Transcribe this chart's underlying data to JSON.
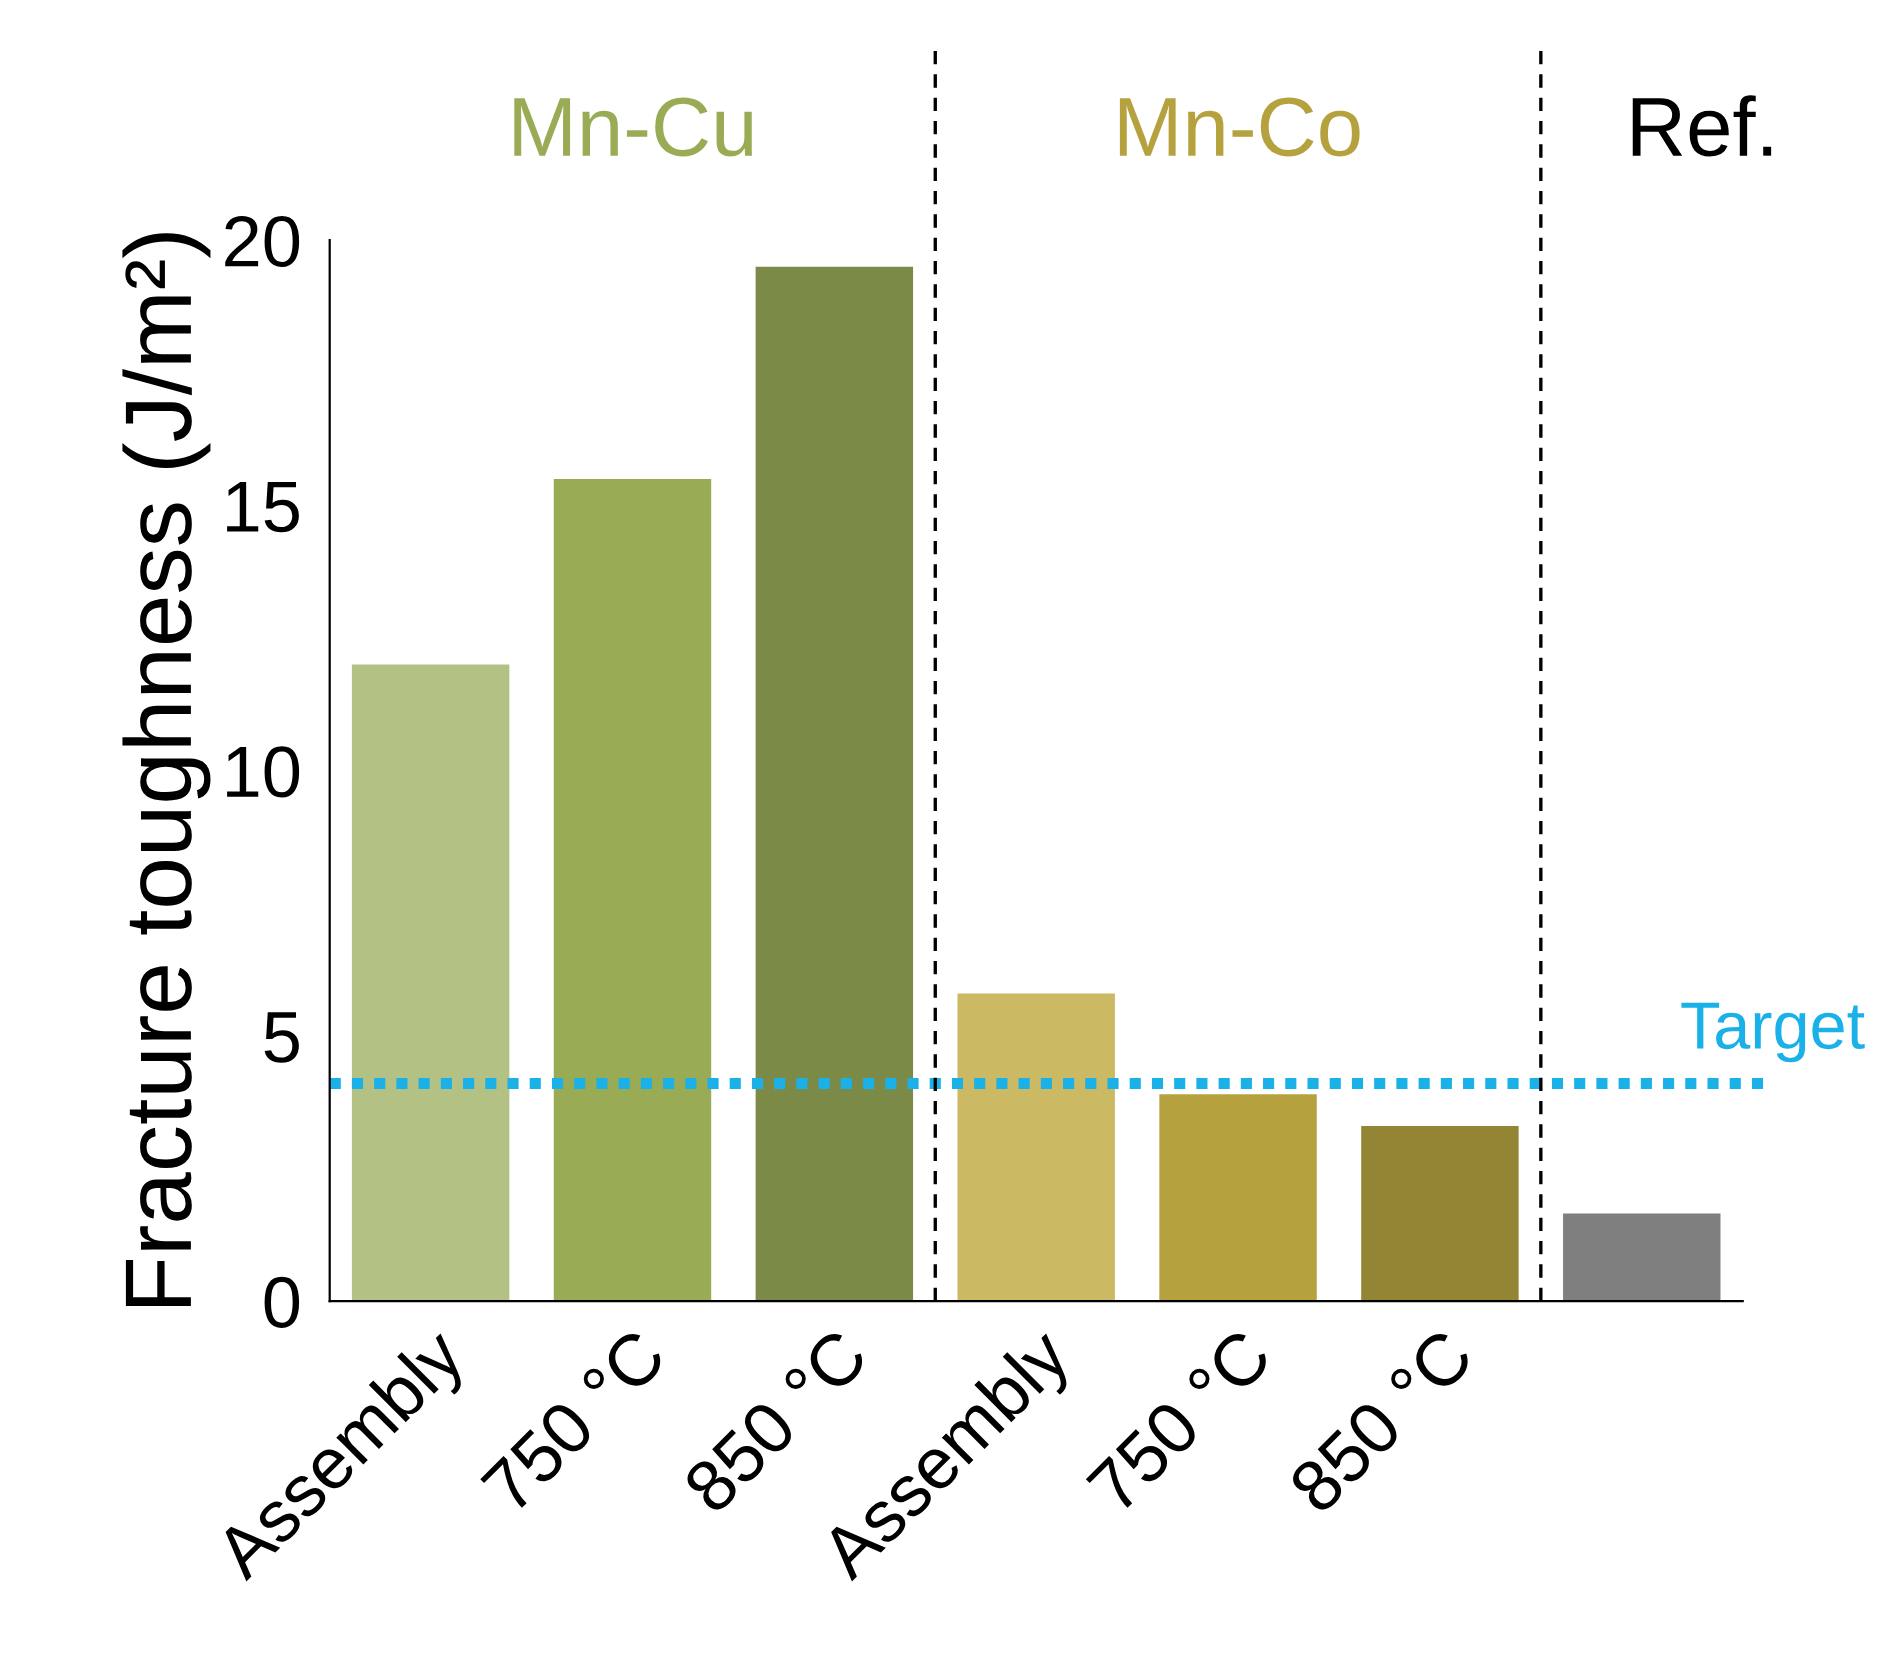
{
  "chart_data": {
    "type": "bar",
    "ylabel": "Fracture toughness (J/m²)",
    "categories": [
      "Assembly",
      "750 °C",
      "850 °C",
      "Assembly",
      "750 °C",
      "850 °C",
      null
    ],
    "values": [
      12.0,
      15.5,
      19.5,
      5.8,
      3.9,
      3.3,
      1.65
    ],
    "colors": [
      "#b3c185",
      "#9aab56",
      "#7b8a46",
      "#cbb963",
      "#b5a23f",
      "#948535",
      "#7f7f7f"
    ],
    "ylim": [
      0,
      20
    ],
    "yticks": [
      0,
      5,
      10,
      15,
      20
    ],
    "grid": false,
    "ref_lines": [
      {
        "axis": "y",
        "value": 4.1,
        "label": "Target",
        "color": "#1ab0e8",
        "line_style": "dotted"
      }
    ],
    "annotations": [
      "Mn-Cu",
      "Mn-Co",
      "Ref."
    ]
  }
}
